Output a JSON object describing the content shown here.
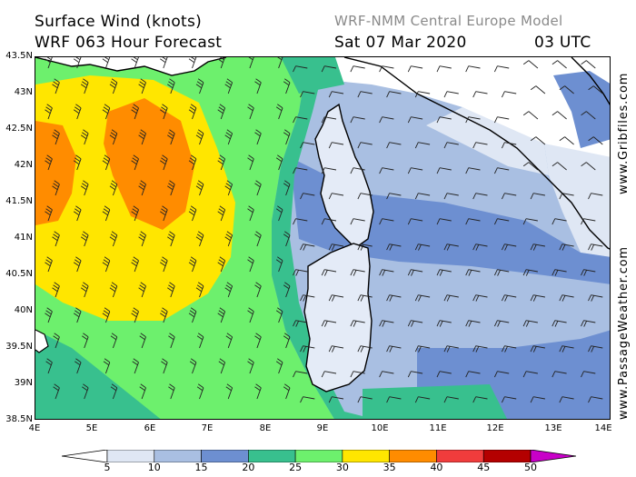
{
  "header": {
    "title_line1": "Surface Wind (knots)",
    "title_line2": "WRF 063 Hour Forecast",
    "model": "WRF-NMM Central Europe Model",
    "date": "Sat 07 Mar 2020",
    "time": "03 UTC"
  },
  "map": {
    "lat_labels": [
      "43.5N",
      "43N",
      "42.5N",
      "42N",
      "41.5N",
      "41N",
      "40.5N",
      "40N",
      "39.5N",
      "39N",
      "38.5N"
    ],
    "lon_labels": [
      "4E",
      "5E",
      "6E",
      "7E",
      "8E",
      "9E",
      "10E",
      "11E",
      "12E",
      "13E",
      "14E"
    ],
    "lat_range": [
      38.5,
      43.5
    ],
    "lon_range": [
      4,
      14
    ],
    "islands": [
      "Corsica",
      "Sardinia"
    ],
    "wind_colors": {
      "0-5": "#ffffff",
      "5-10": "#dfe7f4",
      "10-15": "#a9bfe2",
      "15-20": "#6d8fd1",
      "20-25": "#38c08e",
      "25-30": "#6df06d",
      "30-35": "#ffe600",
      "35-40": "#ff8c00",
      "40-45": "#f03c3c",
      "45-50": "#b40000",
      "50+": "#c800c8"
    }
  },
  "colorbar": {
    "labels": [
      "5",
      "10",
      "15",
      "20",
      "25",
      "30",
      "35",
      "40",
      "45",
      "50"
    ],
    "colors": [
      "#dfe7f4",
      "#a9bfe2",
      "#6d8fd1",
      "#38c08e",
      "#6df06d",
      "#ffe600",
      "#ff8c00",
      "#f03c3c",
      "#b40000"
    ],
    "low_color": "#ffffff",
    "high_color": "#c800c8"
  },
  "credits": {
    "gribfiles": "www.Gribfiles.com",
    "passageweather": "www.PassageWeather.com"
  }
}
